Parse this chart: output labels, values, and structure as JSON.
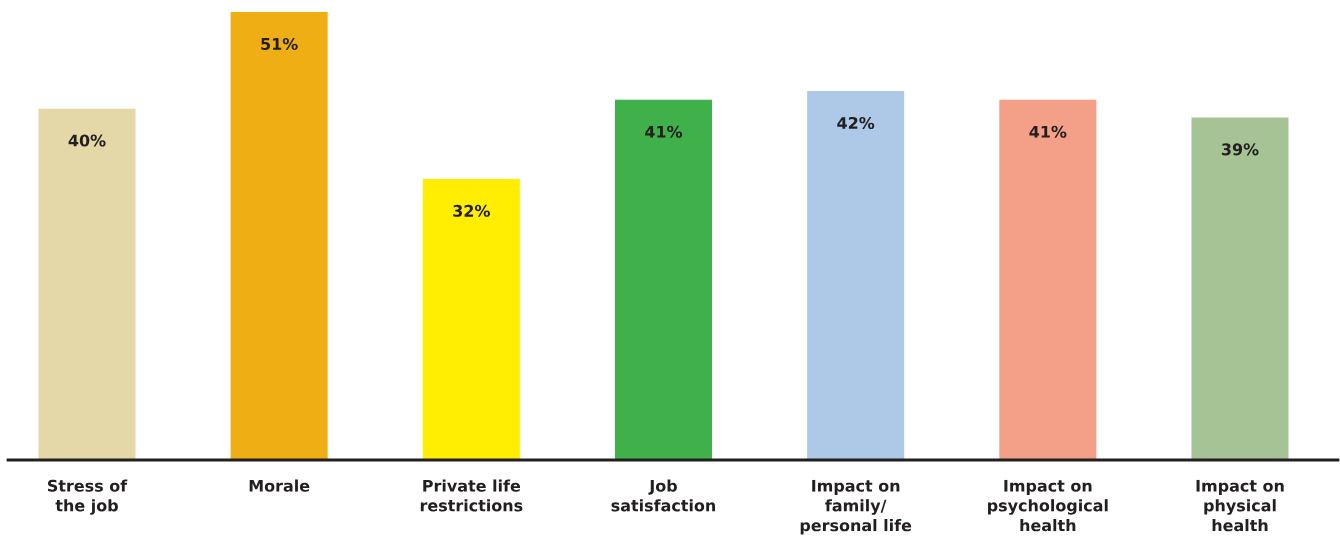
{
  "chart_data": {
    "type": "bar",
    "categories": [
      "Stress of\nthe job",
      "Morale",
      "Private life\nrestrictions",
      "Job\nsatisfaction",
      "Impact on\nfamily/\npersonal life",
      "Impact on\npsychological\nhealth",
      "Impact on\nphysical\nhealth"
    ],
    "values": [
      40,
      51,
      32,
      41,
      42,
      41,
      39
    ],
    "colors": [
      "#e5d8a8",
      "#efaf14",
      "#ffee00",
      "#40b04a",
      "#aec8e8",
      "#f49f87",
      "#a6c396"
    ],
    "value_labels": [
      "40%",
      "51%",
      "32%",
      "41%",
      "42%",
      "41%",
      "39%"
    ],
    "grid": false,
    "legend": false
  }
}
